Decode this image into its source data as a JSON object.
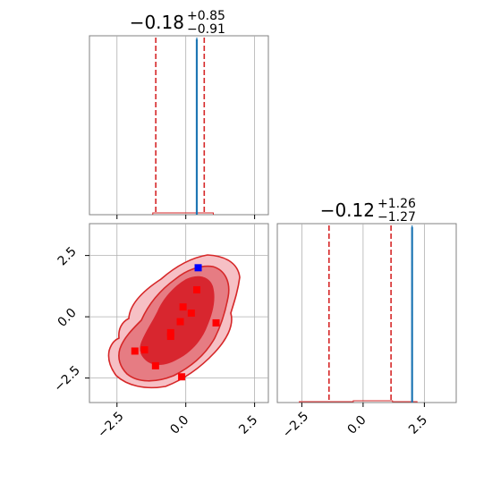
{
  "chart_data": {
    "type": "corner",
    "grid": true,
    "colors": {
      "posterior": "#d62728",
      "reference": "#1f77b4",
      "true_point": "#0000ff",
      "samples": "#ff0000",
      "grid": "#b0b0b0"
    },
    "panels": {
      "top_histogram": {
        "title_value": "−0.18",
        "title_plus": "+0.85",
        "title_minus": "−0.91",
        "x_range": [
          -3.5,
          3.0
        ],
        "quantile_lines": [
          -1.09,
          0.67
        ],
        "reference_line": 0.4,
        "x_ticks": [
          -2.5,
          0.0,
          2.5
        ]
      },
      "joint_contour": {
        "x_range": [
          -3.5,
          3.0
        ],
        "y_range": [
          -3.5,
          3.8
        ],
        "x_ticks": [
          -2.5,
          0.0,
          2.5
        ],
        "y_ticks": [
          2.5,
          0.0,
          -2.5
        ],
        "x_tick_labels": [
          "−2.5",
          "0.0",
          "2.5"
        ],
        "y_tick_labels": [
          "2.5",
          "0.0",
          "−2.5"
        ],
        "true_point": {
          "x": 0.45,
          "y": 2.0
        },
        "samples": [
          {
            "x": 0.4,
            "y": 1.1
          },
          {
            "x": -0.1,
            "y": 0.4
          },
          {
            "x": 0.2,
            "y": 0.15
          },
          {
            "x": 1.1,
            "y": -0.25
          },
          {
            "x": -0.2,
            "y": -0.2
          },
          {
            "x": -0.55,
            "y": -0.65
          },
          {
            "x": -0.55,
            "y": -0.8
          },
          {
            "x": -1.5,
            "y": -1.35
          },
          {
            "x": -1.85,
            "y": -1.4
          },
          {
            "x": -1.1,
            "y": -2.0
          },
          {
            "x": -0.15,
            "y": -2.45
          }
        ]
      },
      "right_histogram": {
        "title_value": "−0.12",
        "title_plus": "+1.26",
        "title_minus": "−1.27",
        "x_range": [
          -3.5,
          3.8
        ],
        "quantile_lines": [
          -1.39,
          1.14
        ],
        "reference_line": 2.0,
        "x_ticks": [
          -2.5,
          0.0,
          2.5
        ],
        "x_tick_labels": [
          "−2.5",
          "0.0",
          "2.5"
        ]
      }
    }
  }
}
